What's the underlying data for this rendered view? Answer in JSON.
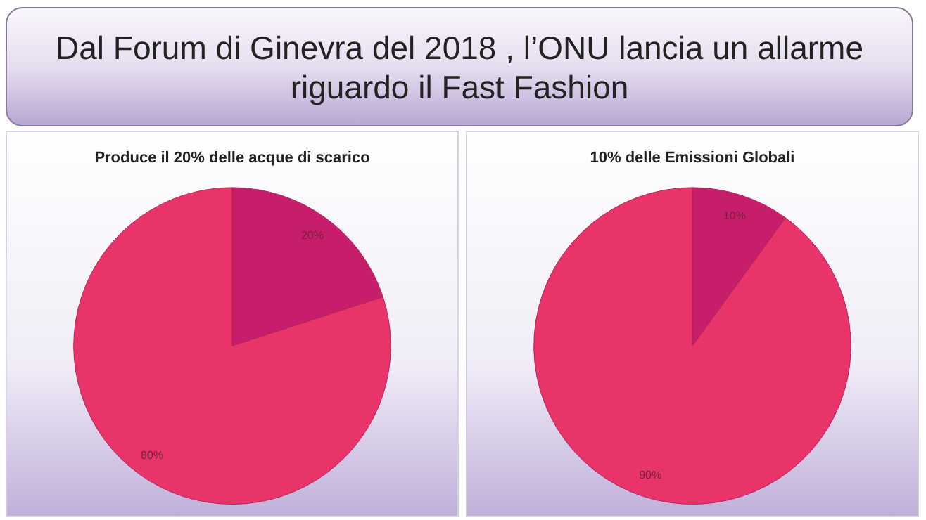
{
  "chart_data": [
    {
      "type": "other",
      "title": "Dal Forum di Ginevra del 2018 , l’ONU lancia un allarme riguardo il Fast Fashion"
    },
    {
      "type": "pie",
      "title": "Produce il 20% delle acque di scarico",
      "categories": [
        null,
        null
      ],
      "values": [
        20,
        80
      ],
      "colors": [
        "#c71e6b",
        "#e9346a"
      ],
      "value_labels": [
        "20%",
        "80%"
      ]
    },
    {
      "type": "pie",
      "title": "10% delle Emissioni Globali",
      "categories": [
        null,
        null
      ],
      "values": [
        10,
        90
      ],
      "colors": [
        "#c71e6b",
        "#e9346a"
      ],
      "value_labels": [
        "10%",
        "90%"
      ]
    }
  ]
}
